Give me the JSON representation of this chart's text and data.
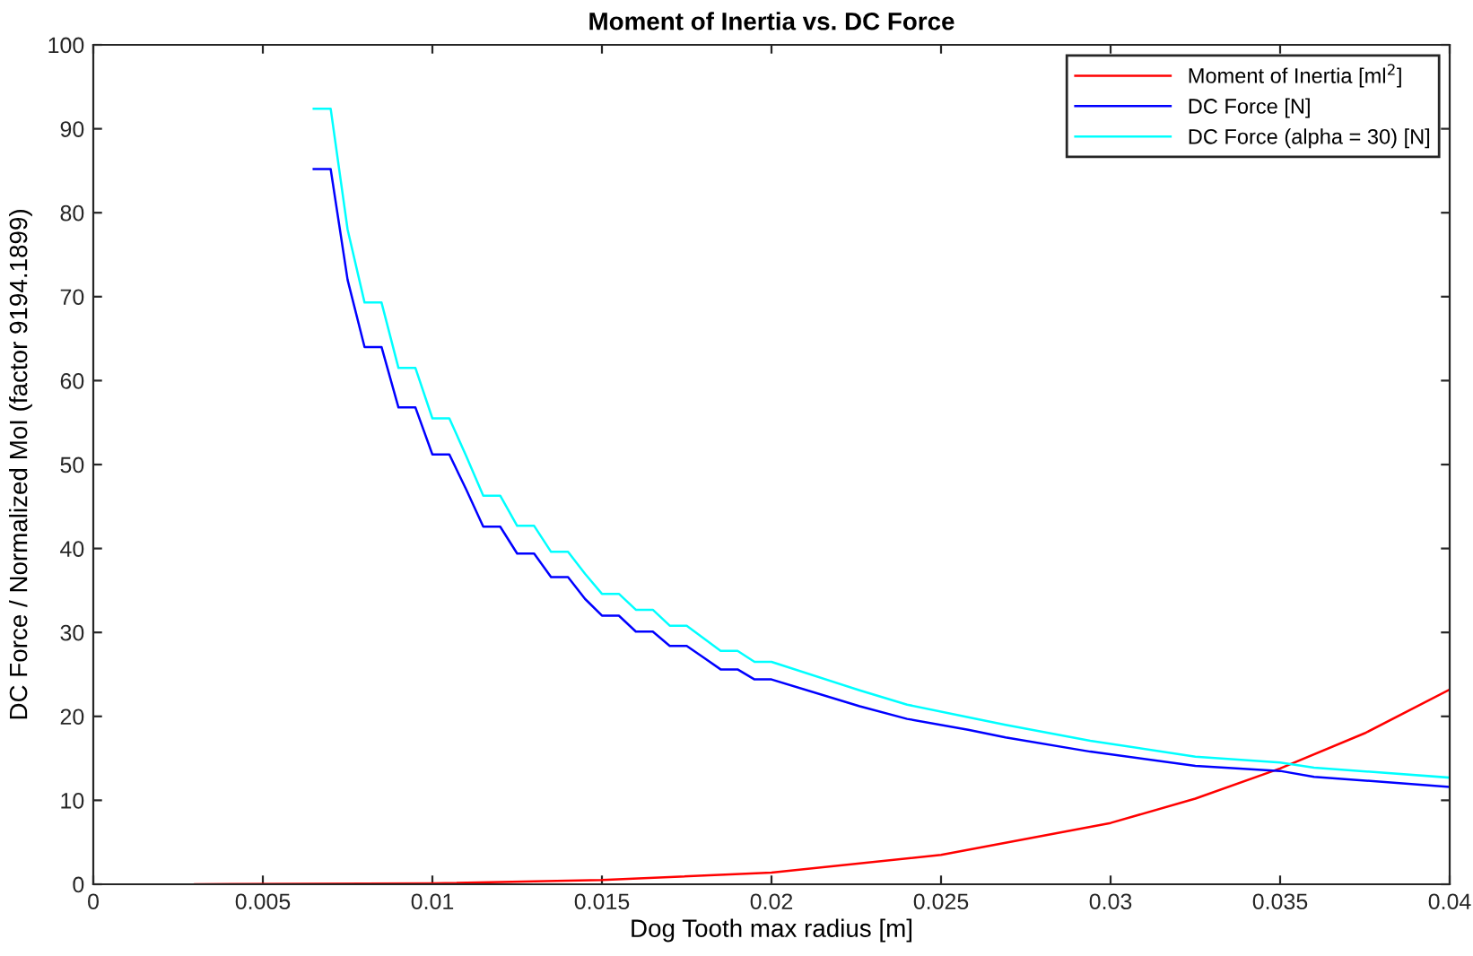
{
  "chart_data": {
    "type": "line",
    "title": "Moment of Inertia vs. DC Force",
    "xlabel": "Dog Tooth max radius [m]",
    "ylabel": "DC Force / Normalized MoI (factor 9194.1899)",
    "xlim": [
      0,
      0.04
    ],
    "ylim": [
      0,
      100
    ],
    "xticks": [
      0,
      0.005,
      0.01,
      0.015,
      0.02,
      0.025,
      0.03,
      0.035,
      0.04
    ],
    "yticks": [
      0,
      10,
      20,
      30,
      40,
      50,
      60,
      70,
      80,
      90,
      100
    ],
    "grid": false,
    "legend": "top right",
    "series": [
      {
        "name": "Moment of Inertia [ml$^{2}$]",
        "color": "#ff0000",
        "x": [
          0.003,
          0.01,
          0.015,
          0.02,
          0.025,
          0.03,
          0.0325,
          0.035,
          0.0375,
          0.04
        ],
        "values": [
          0,
          0.1,
          0.5,
          1.4,
          3.5,
          7.3,
          10.2,
          13.8,
          18.0,
          23.2
        ]
      },
      {
        "name": "DC Force [N]",
        "color": "#0000ff",
        "x": [
          0.0065,
          0.007,
          0.0075,
          0.008,
          0.0085,
          0.009,
          0.0095,
          0.01,
          0.0105,
          0.011,
          0.0115,
          0.012,
          0.0125,
          0.013,
          0.0135,
          0.014,
          0.0145,
          0.015,
          0.0155,
          0.016,
          0.0165,
          0.017,
          0.0175,
          0.018,
          0.0185,
          0.019,
          0.0195,
          0.02,
          0.0226,
          0.024,
          0.0258,
          0.0269,
          0.0294,
          0.0325,
          0.035,
          0.036,
          0.04
        ],
        "values": [
          85.2,
          85.2,
          72,
          64,
          64,
          56.8,
          56.8,
          51.2,
          51.2,
          47,
          42.6,
          42.6,
          39.4,
          39.4,
          36.6,
          36.6,
          34,
          32,
          32,
          30.1,
          30.1,
          28.4,
          28.4,
          27,
          25.6,
          25.6,
          24.4,
          24.4,
          21.2,
          19.7,
          18.4,
          17.5,
          15.8,
          14.1,
          13.5,
          12.8,
          11.6
        ]
      },
      {
        "name": "DC Force (alpha = 30) [N]",
        "color": "#00ffff",
        "x": [
          0.0065,
          0.007,
          0.0075,
          0.008,
          0.0085,
          0.009,
          0.0095,
          0.01,
          0.0105,
          0.011,
          0.0115,
          0.012,
          0.0125,
          0.013,
          0.0135,
          0.014,
          0.0145,
          0.015,
          0.0155,
          0.016,
          0.0165,
          0.017,
          0.0175,
          0.018,
          0.0185,
          0.019,
          0.0195,
          0.02,
          0.0226,
          0.024,
          0.0258,
          0.0269,
          0.0294,
          0.0325,
          0.035,
          0.036,
          0.04
        ],
        "values": [
          92.4,
          92.4,
          78,
          69.3,
          69.3,
          61.5,
          61.5,
          55.5,
          55.5,
          51,
          46.3,
          46.3,
          42.7,
          42.7,
          39.6,
          39.6,
          37,
          34.6,
          34.6,
          32.7,
          32.7,
          30.8,
          30.8,
          29.3,
          27.8,
          27.8,
          26.5,
          26.5,
          23.1,
          21.4,
          19.9,
          19.0,
          17.1,
          15.2,
          14.5,
          13.9,
          12.7
        ]
      }
    ]
  }
}
